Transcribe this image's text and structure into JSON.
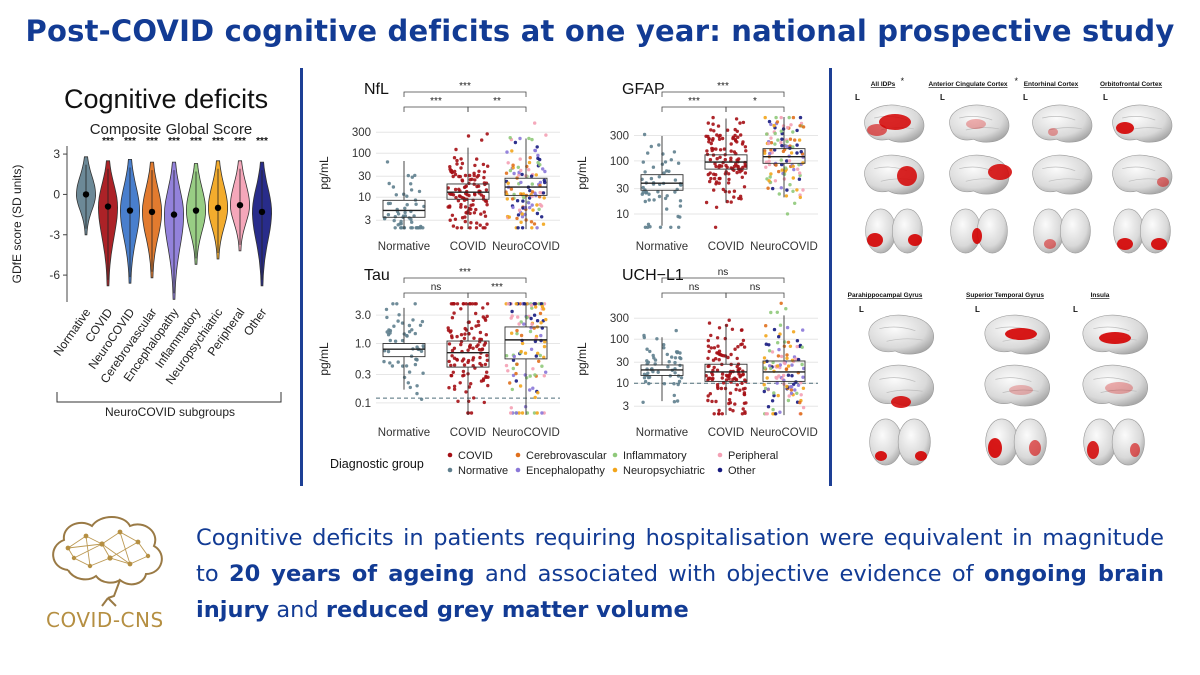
{
  "title": "Post-COVID cognitive deficits at one year: national prospective study",
  "colors": {
    "brand": "#123b94",
    "gold": "#b58f42",
    "Normative": "#5f7f8e",
    "COVID": "#a50f15",
    "Cerebrovascular": "#e0701d",
    "Encephalopathy": "#8a77d8",
    "Inflammatory": "#8fc97a",
    "Neuropsychiatric": "#f2a51b",
    "Peripheral": "#f4a0b4",
    "Other": "#161a80",
    "NeuroCOVID": "#3a74c9"
  },
  "cognitive": {
    "panel_title": "Cognitive deficits",
    "subgroup_label": "NeuroCOVID subgroups"
  },
  "chart_data": [
    {
      "type": "violin",
      "title": "Composite Global Score",
      "ylabel": "GDfE score (SD units)",
      "ylim": [
        -8,
        3.6
      ],
      "yticks": [
        3,
        0,
        -3,
        -6
      ],
      "categories": [
        "Normative",
        "COVID",
        "NeuroCOVID",
        "Cerebrovascular",
        "Encephalopathy",
        "Inflammatory",
        "Neuropsychiatric",
        "Peripheral",
        "Other"
      ],
      "medians": [
        0.0,
        -0.9,
        -1.2,
        -1.3,
        -1.5,
        -1.2,
        -1.0,
        -0.8,
        -1.3
      ],
      "min": [
        -3.0,
        -6.8,
        -6.6,
        -6.2,
        -7.8,
        -5.2,
        -4.8,
        -4.2,
        -6.8
      ],
      "max": [
        2.8,
        2.5,
        2.6,
        2.4,
        2.4,
        2.3,
        2.5,
        2.5,
        2.4
      ],
      "significance": [
        "",
        "***",
        "***",
        "***",
        "***",
        "***",
        "***",
        "***",
        "***"
      ]
    },
    {
      "type": "scatter",
      "title": "NfL",
      "ylabel": "pg/mL",
      "scale": "log",
      "yticks": [
        3,
        10,
        30,
        100,
        300
      ],
      "yticklabels": [
        "3",
        "10",
        "30",
        "100",
        "300"
      ],
      "ylim": [
        1.8,
        700
      ],
      "categories": [
        "Normative",
        "COVID",
        "NeuroCOVID"
      ],
      "medians": [
        5,
        13,
        17
      ],
      "q1": [
        3.5,
        9,
        11
      ],
      "q3": [
        8.5,
        20,
        27
      ],
      "brackets": [
        {
          "from": 0,
          "to": 1,
          "label": "***"
        },
        {
          "from": 1,
          "to": 2,
          "label": "**"
        },
        {
          "from": 0,
          "to": 2,
          "label": "***"
        }
      ]
    },
    {
      "type": "scatter",
      "title": "GFAP",
      "ylabel": "pg/mL",
      "scale": "log",
      "yticks": [
        10,
        30,
        100,
        300
      ],
      "yticklabels": [
        "10",
        "30",
        "100",
        "300"
      ],
      "ylim": [
        5,
        700
      ],
      "categories": [
        "Normative",
        "COVID",
        "NeuroCOVID"
      ],
      "medians": [
        38,
        95,
        120
      ],
      "q1": [
        28,
        70,
        90
      ],
      "q3": [
        55,
        130,
        170
      ],
      "brackets": [
        {
          "from": 0,
          "to": 1,
          "label": "***"
        },
        {
          "from": 1,
          "to": 2,
          "label": "*"
        },
        {
          "from": 0,
          "to": 2,
          "label": "***"
        }
      ]
    },
    {
      "type": "scatter",
      "title": "Tau",
      "ylabel": "pg/mL",
      "scale": "log",
      "yticks": [
        0.1,
        0.3,
        1.0,
        3.0
      ],
      "yticklabels": [
        "0.1",
        "0.3",
        "1.0",
        "3.0"
      ],
      "ylim": [
        0.06,
        5
      ],
      "reference_line": 0.12,
      "categories": [
        "Normative",
        "COVID",
        "NeuroCOVID"
      ],
      "medians": [
        0.8,
        0.7,
        1.15
      ],
      "q1": [
        0.6,
        0.4,
        0.55
      ],
      "q3": [
        1.0,
        1.1,
        1.9
      ],
      "brackets": [
        {
          "from": 0,
          "to": 1,
          "label": "ns"
        },
        {
          "from": 1,
          "to": 2,
          "label": "***"
        },
        {
          "from": 0,
          "to": 2,
          "label": "***"
        }
      ]
    },
    {
      "type": "scatter",
      "title": "UCH−L1",
      "ylabel": "pg/mL",
      "scale": "log",
      "yticks": [
        3,
        10,
        30,
        100,
        300
      ],
      "yticklabels": [
        "3",
        "10",
        "30",
        "100",
        "300"
      ],
      "ylim": [
        1.8,
        700
      ],
      "reference_line": 10,
      "categories": [
        "Normative",
        "COVID",
        "NeuroCOVID"
      ],
      "medians": [
        20,
        18,
        18
      ],
      "q1": [
        15,
        11,
        11
      ],
      "q3": [
        26,
        27,
        32
      ],
      "brackets": [
        {
          "from": 0,
          "to": 1,
          "label": "ns"
        },
        {
          "from": 1,
          "to": 2,
          "label": "ns"
        },
        {
          "from": 0,
          "to": 2,
          "label": "ns"
        }
      ]
    }
  ],
  "legend": {
    "title": "Diagnostic group",
    "items": [
      "COVID",
      "Normative",
      "Cerebrovascular",
      "Encephalopathy",
      "Inflammatory",
      "Neuropsychiatric",
      "Peripheral",
      "Other"
    ]
  },
  "brain": {
    "top_labels": [
      "All IDPs",
      "Anterior Cingulate Cortex",
      "Entorhinal Cortex",
      "Orbitofrontal Cortex"
    ],
    "top_stars": [
      "*",
      "*",
      "",
      ""
    ],
    "bottom_labels": [
      "Parahippocampal Gyrus",
      "Superior Temporal Gyrus",
      "Insula"
    ],
    "hemisphere": "L"
  },
  "summary": {
    "p1": "Cognitive deficits in patients requiring hospitalisation were equivalent in magnitude to ",
    "b1": "20 years of ageing",
    "p2": " and associated with objective evidence of ",
    "b2": "ongoing brain injury",
    "p3": " and ",
    "b3": "reduced grey matter volume"
  },
  "logo": {
    "text": "COVID-CNS"
  }
}
